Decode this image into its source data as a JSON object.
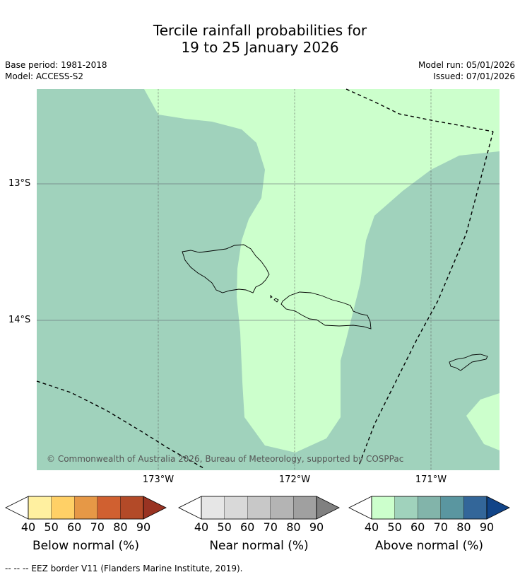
{
  "title_line1": "Tercile rainfall probabilities for",
  "title_line2": "19 to 25 January 2026",
  "base_period": "Base period: 1981-2018",
  "model": "Model: ACCESS-S2",
  "model_run": "Model run: 05/01/2026",
  "issued": "Issued: 07/01/2026",
  "lat_labels": [
    "13°S",
    "14°S"
  ],
  "lon_labels": [
    "173°W",
    "172°W",
    "171°W"
  ],
  "copyright": "© Commonwealth of Australia 2026, Bureau of Meteorology, supported by COSPPac",
  "colorbars": [
    {
      "title": "Below normal (%)",
      "ticks": [
        "40",
        "50",
        "60",
        "70",
        "80",
        "90"
      ],
      "colors": [
        "#ffffff",
        "#fff0a0",
        "#ffd066",
        "#e69846",
        "#d06030",
        "#b34a28",
        "#993322"
      ]
    },
    {
      "title": "Near normal (%)",
      "ticks": [
        "40",
        "50",
        "60",
        "70",
        "80",
        "90"
      ],
      "colors": [
        "#ffffff",
        "#e6e6e6",
        "#d9d9d9",
        "#c8c8c8",
        "#b4b4b4",
        "#a0a0a0",
        "#808080"
      ]
    },
    {
      "title": "Above normal (%)",
      "ticks": [
        "40",
        "50",
        "60",
        "70",
        "80",
        "90"
      ],
      "colors": [
        "#ffffff",
        "#ccffcc",
        "#a0d2bc",
        "#82b4aa",
        "#5a96a0",
        "#336699",
        "#114488"
      ]
    }
  ],
  "map_colors": {
    "above_50_60": "#a0d2bc",
    "above_40_50": "#ccffcc"
  },
  "footer": "--  --  -- EEZ border V11 (Flanders Marine Institute, 2019)."
}
